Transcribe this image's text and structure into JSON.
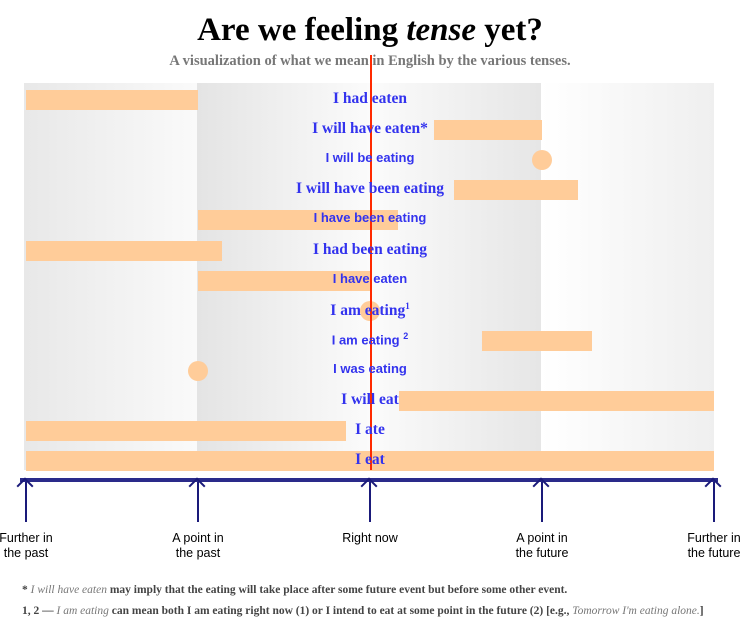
{
  "title_pre": "Are we feeling ",
  "title_em": "tense",
  "title_post": " yet?",
  "subtitle": "A visualization of what we mean in English by the various  tenses.",
  "colors": {
    "bar": "#ffcc99",
    "label": "#3333ee",
    "now_line": "#ff2a00",
    "axis": "#2a2a8a"
  },
  "time_scale": {
    "further_past": -2,
    "point_past": -1,
    "now": 0,
    "point_future": 1,
    "further_future": 2
  },
  "rows": [
    {
      "label": "I had eaten",
      "sup": "",
      "style": "serif",
      "shape": "bar",
      "start": -2,
      "end": -1
    },
    {
      "label": "I will have eaten*",
      "sup": "",
      "style": "serif",
      "shape": "bar",
      "start": 0.37,
      "end": 1
    },
    {
      "label": "I will be eating",
      "sup": "",
      "style": "sans",
      "shape": "dot",
      "at": 1
    },
    {
      "label": "I will have been eating",
      "sup": "",
      "style": "serif",
      "shape": "bar",
      "start": 0.49,
      "end": 1.21
    },
    {
      "label": "I have been eating",
      "sup": "",
      "style": "sans",
      "shape": "bar",
      "start": -1,
      "end": 0.16
    },
    {
      "label": "I had been eating",
      "sup": "",
      "style": "serif",
      "shape": "bar",
      "start": -2,
      "end": -0.86
    },
    {
      "label": "I have eaten",
      "sup": "",
      "style": "sans",
      "shape": "bar",
      "start": -1,
      "end": 0
    },
    {
      "label": "I am eating",
      "sup": "1",
      "style": "serif",
      "shape": "dot",
      "at": 0
    },
    {
      "label": "I am eating ",
      "sup": "2",
      "style": "sans",
      "shape": "bar",
      "start": 0.65,
      "end": 1.29
    },
    {
      "label": "I was eating",
      "sup": "",
      "style": "sans",
      "shape": "dot",
      "at": -1
    },
    {
      "label": "I will eat",
      "sup": "",
      "style": "serif",
      "shape": "bar",
      "start": 0.17,
      "end": 2
    },
    {
      "label": "I ate",
      "sup": "",
      "style": "serif",
      "shape": "bar",
      "start": -2,
      "end": -0.14
    },
    {
      "label": "I eat",
      "sup": "",
      "style": "serif",
      "shape": "bar",
      "start": -2,
      "end": 2
    }
  ],
  "axis_labels": [
    {
      "line1": "Further in",
      "line2": "the past",
      "at": -2
    },
    {
      "line1": "A point in",
      "line2": "the past",
      "at": -1
    },
    {
      "line1": "Right now",
      "line2": "",
      "at": 0
    },
    {
      "line1": "A point in",
      "line2": "the future",
      "at": 1
    },
    {
      "line1": "Further in",
      "line2": "the future",
      "at": 2
    }
  ],
  "notes": {
    "n1_mark": "* ",
    "n1_em": "I will have eaten",
    "n1_text": " may imply that the eating will take place after some future event but before some other event.",
    "n2_mark": "1, 2 — ",
    "n2_em": "I am eating",
    "n2_text": " can mean both I am eating right now (1) or I intend to eat at some point in the future (2) [e.g., ",
    "n2_em2": "Tomorrow I'm eating alone.",
    "n2_end": "]"
  }
}
